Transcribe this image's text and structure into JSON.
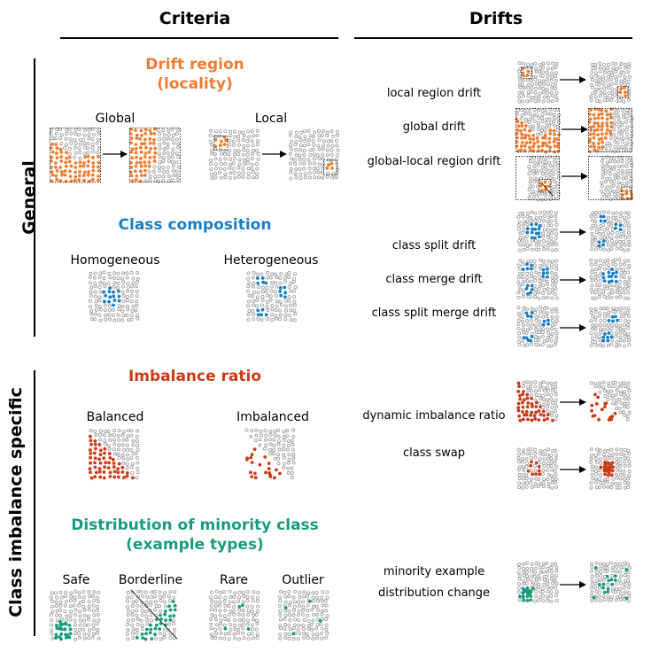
{
  "headers": {
    "criteria": "Criteria",
    "drifts": "Drifts"
  },
  "side_labels": {
    "general": "General",
    "imbalance": "Class imbalance specific"
  },
  "colors": {
    "orange": "#ed7d31",
    "blue": "#1a7ec4",
    "red": "#cc3a16",
    "teal": "#1a9a7f",
    "gray": "#9a9a9a"
  },
  "criteria": {
    "drift_region": {
      "title_line1": "Drift region",
      "title_line2": "(locality)",
      "global": "Global",
      "local": "Local"
    },
    "class_composition": {
      "title": "Class composition",
      "homogeneous": "Homogeneous",
      "heterogeneous": "Heterogeneous"
    },
    "imbalance_ratio": {
      "title": "Imbalance ratio",
      "balanced": "Balanced",
      "imbalanced": "Imbalanced"
    },
    "minority_distribution": {
      "title_line1": "Distribution of minority class",
      "title_line2": "(example types)",
      "safe": "Safe",
      "borderline": "Borderline",
      "rare": "Rare",
      "outlier": "Outlier"
    }
  },
  "drifts": {
    "local_region": "local region drift",
    "global": "global drift",
    "global_local": "global-local region drift",
    "class_split": "class split drift",
    "class_merge": "class merge drift",
    "class_split_merge": "class split merge drift",
    "dynamic_imbalance": "dynamic imbalance ratio",
    "class_swap": "class swap",
    "minority_change_line1": "minority example",
    "minority_change_line2": "distribution change"
  }
}
